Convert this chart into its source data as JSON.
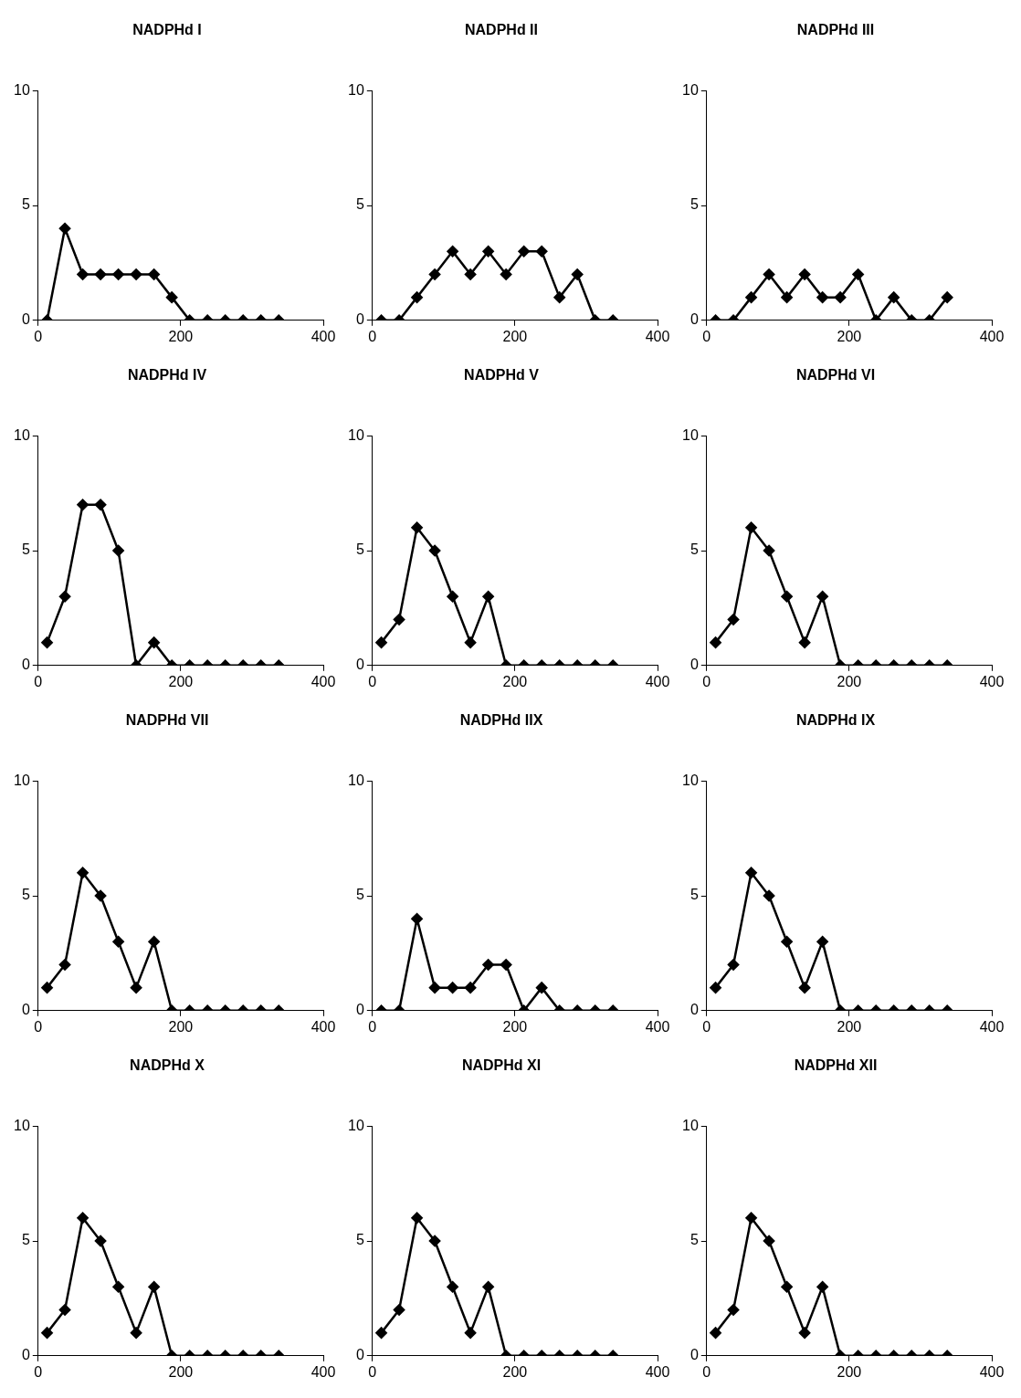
{
  "chart_data": [
    {
      "type": "line",
      "title": "NADPHd I",
      "x": [
        12.5,
        37.5,
        62.5,
        87.5,
        112.5,
        137.5,
        162.5,
        187.5,
        212.5,
        237.5,
        262.5,
        287.5,
        312.5,
        337.5
      ],
      "values": [
        0,
        4,
        2,
        2,
        2,
        2,
        2,
        1,
        0,
        0,
        0,
        0,
        0,
        0
      ],
      "color": "#000000",
      "marker": "diamond",
      "line_style": "solid",
      "xlim": [
        0,
        400
      ],
      "xticks": [
        0,
        200,
        400
      ],
      "ylim": [
        0,
        10
      ],
      "yticks": [
        0,
        5,
        10
      ],
      "grid": false,
      "legend": false
    },
    {
      "type": "line",
      "title": "NADPHd II",
      "x": [
        12.5,
        37.5,
        62.5,
        87.5,
        112.5,
        137.5,
        162.5,
        187.5,
        212.5,
        237.5,
        262.5,
        287.5,
        312.5,
        337.5
      ],
      "values": [
        0,
        0,
        1,
        2,
        3,
        2,
        3,
        2,
        3,
        3,
        1,
        2,
        0,
        0
      ],
      "color": "#000000",
      "marker": "diamond",
      "line_style": "solid",
      "xlim": [
        0,
        400
      ],
      "xticks": [
        0,
        200,
        400
      ],
      "ylim": [
        0,
        10
      ],
      "yticks": [
        0,
        5,
        10
      ],
      "grid": false,
      "legend": false
    },
    {
      "type": "line",
      "title": "NADPHd III",
      "x": [
        12.5,
        37.5,
        62.5,
        87.5,
        112.5,
        137.5,
        162.5,
        187.5,
        212.5,
        237.5,
        262.5,
        287.5,
        312.5,
        337.5
      ],
      "values": [
        0,
        0,
        1,
        2,
        1,
        2,
        1,
        1,
        2,
        0,
        1,
        0,
        0,
        1
      ],
      "color": "#000000",
      "marker": "diamond",
      "line_style": "solid",
      "xlim": [
        0,
        400
      ],
      "xticks": [
        0,
        200,
        400
      ],
      "ylim": [
        0,
        10
      ],
      "yticks": [
        0,
        5,
        10
      ],
      "grid": false,
      "legend": false
    },
    {
      "type": "line",
      "title": "NADPHd IV",
      "x": [
        12.5,
        37.5,
        62.5,
        87.5,
        112.5,
        137.5,
        162.5,
        187.5,
        212.5,
        237.5,
        262.5,
        287.5,
        312.5,
        337.5
      ],
      "values": [
        1,
        3,
        7,
        7,
        5,
        0,
        1,
        0,
        0,
        0,
        0,
        0,
        0,
        0
      ],
      "color": "#000000",
      "marker": "diamond",
      "line_style": "solid",
      "xlim": [
        0,
        400
      ],
      "xticks": [
        0,
        200,
        400
      ],
      "ylim": [
        0,
        10
      ],
      "yticks": [
        0,
        5,
        10
      ],
      "grid": false,
      "legend": false
    },
    {
      "type": "line",
      "title": "NADPHd V",
      "x": [
        12.5,
        37.5,
        62.5,
        87.5,
        112.5,
        137.5,
        162.5,
        187.5,
        212.5,
        237.5,
        262.5,
        287.5,
        312.5,
        337.5
      ],
      "values": [
        1,
        2,
        6,
        5,
        3,
        1,
        3,
        0,
        0,
        0,
        0,
        0,
        0,
        0
      ],
      "color": "#000000",
      "marker": "diamond",
      "line_style": "solid",
      "xlim": [
        0,
        400
      ],
      "xticks": [
        0,
        200,
        400
      ],
      "ylim": [
        0,
        10
      ],
      "yticks": [
        0,
        5,
        10
      ],
      "grid": false,
      "legend": false
    },
    {
      "type": "line",
      "title": "NADPHd VI",
      "x": [
        12.5,
        37.5,
        62.5,
        87.5,
        112.5,
        137.5,
        162.5,
        187.5,
        212.5,
        237.5,
        262.5,
        287.5,
        312.5,
        337.5
      ],
      "values": [
        1,
        2,
        6,
        5,
        3,
        1,
        3,
        0,
        0,
        0,
        0,
        0,
        0,
        0
      ],
      "color": "#000000",
      "marker": "diamond",
      "line_style": "solid",
      "xlim": [
        0,
        400
      ],
      "xticks": [
        0,
        200,
        400
      ],
      "ylim": [
        0,
        10
      ],
      "yticks": [
        0,
        5,
        10
      ],
      "grid": false,
      "legend": false
    },
    {
      "type": "line",
      "title": "NADPHd VII",
      "x": [
        12.5,
        37.5,
        62.5,
        87.5,
        112.5,
        137.5,
        162.5,
        187.5,
        212.5,
        237.5,
        262.5,
        287.5,
        312.5,
        337.5
      ],
      "values": [
        1,
        2,
        6,
        5,
        3,
        1,
        3,
        0,
        0,
        0,
        0,
        0,
        0,
        0
      ],
      "color": "#000000",
      "marker": "diamond",
      "line_style": "solid",
      "xlim": [
        0,
        400
      ],
      "xticks": [
        0,
        200,
        400
      ],
      "ylim": [
        0,
        10
      ],
      "yticks": [
        0,
        5,
        10
      ],
      "grid": false,
      "legend": false
    },
    {
      "type": "line",
      "title": "NADPHd IIX",
      "x": [
        12.5,
        37.5,
        62.5,
        87.5,
        112.5,
        137.5,
        162.5,
        187.5,
        212.5,
        237.5,
        262.5,
        287.5,
        312.5,
        337.5
      ],
      "values": [
        0,
        0,
        4,
        1,
        1,
        1,
        2,
        2,
        0,
        1,
        0,
        0,
        0,
        0
      ],
      "color": "#000000",
      "marker": "diamond",
      "line_style": "solid",
      "xlim": [
        0,
        400
      ],
      "xticks": [
        0,
        200,
        400
      ],
      "ylim": [
        0,
        10
      ],
      "yticks": [
        0,
        5,
        10
      ],
      "grid": false,
      "legend": false
    },
    {
      "type": "line",
      "title": "NADPHd IX",
      "x": [
        12.5,
        37.5,
        62.5,
        87.5,
        112.5,
        137.5,
        162.5,
        187.5,
        212.5,
        237.5,
        262.5,
        287.5,
        312.5,
        337.5
      ],
      "values": [
        1,
        2,
        6,
        5,
        3,
        1,
        3,
        0,
        0,
        0,
        0,
        0,
        0,
        0
      ],
      "color": "#000000",
      "marker": "diamond",
      "line_style": "solid",
      "xlim": [
        0,
        400
      ],
      "xticks": [
        0,
        200,
        400
      ],
      "ylim": [
        0,
        10
      ],
      "yticks": [
        0,
        5,
        10
      ],
      "grid": false,
      "legend": false
    },
    {
      "type": "line",
      "title": "NADPHd X",
      "x": [
        12.5,
        37.5,
        62.5,
        87.5,
        112.5,
        137.5,
        162.5,
        187.5,
        212.5,
        237.5,
        262.5,
        287.5,
        312.5,
        337.5
      ],
      "values": [
        1,
        2,
        6,
        5,
        3,
        1,
        3,
        0,
        0,
        0,
        0,
        0,
        0,
        0
      ],
      "color": "#000000",
      "marker": "diamond",
      "line_style": "solid",
      "xlim": [
        0,
        400
      ],
      "xticks": [
        0,
        200,
        400
      ],
      "ylim": [
        0,
        10
      ],
      "yticks": [
        0,
        5,
        10
      ],
      "grid": false,
      "legend": false
    },
    {
      "type": "line",
      "title": "NADPHd XI",
      "x": [
        12.5,
        37.5,
        62.5,
        87.5,
        112.5,
        137.5,
        162.5,
        187.5,
        212.5,
        237.5,
        262.5,
        287.5,
        312.5,
        337.5
      ],
      "values": [
        1,
        2,
        6,
        5,
        3,
        1,
        3,
        0,
        0,
        0,
        0,
        0,
        0,
        0
      ],
      "color": "#000000",
      "marker": "diamond",
      "line_style": "solid",
      "xlim": [
        0,
        400
      ],
      "xticks": [
        0,
        200,
        400
      ],
      "ylim": [
        0,
        10
      ],
      "yticks": [
        0,
        5,
        10
      ],
      "grid": false,
      "legend": false
    },
    {
      "type": "line",
      "title": "NADPHd XII",
      "x": [
        12.5,
        37.5,
        62.5,
        87.5,
        112.5,
        137.5,
        162.5,
        187.5,
        212.5,
        237.5,
        262.5,
        287.5,
        312.5,
        337.5
      ],
      "values": [
        1,
        2,
        6,
        5,
        3,
        1,
        3,
        0,
        0,
        0,
        0,
        0,
        0,
        0
      ],
      "color": "#000000",
      "marker": "diamond",
      "line_style": "solid",
      "xlim": [
        0,
        400
      ],
      "xticks": [
        0,
        200,
        400
      ],
      "ylim": [
        0,
        10
      ],
      "yticks": [
        0,
        5,
        10
      ],
      "grid": false,
      "legend": false
    }
  ]
}
